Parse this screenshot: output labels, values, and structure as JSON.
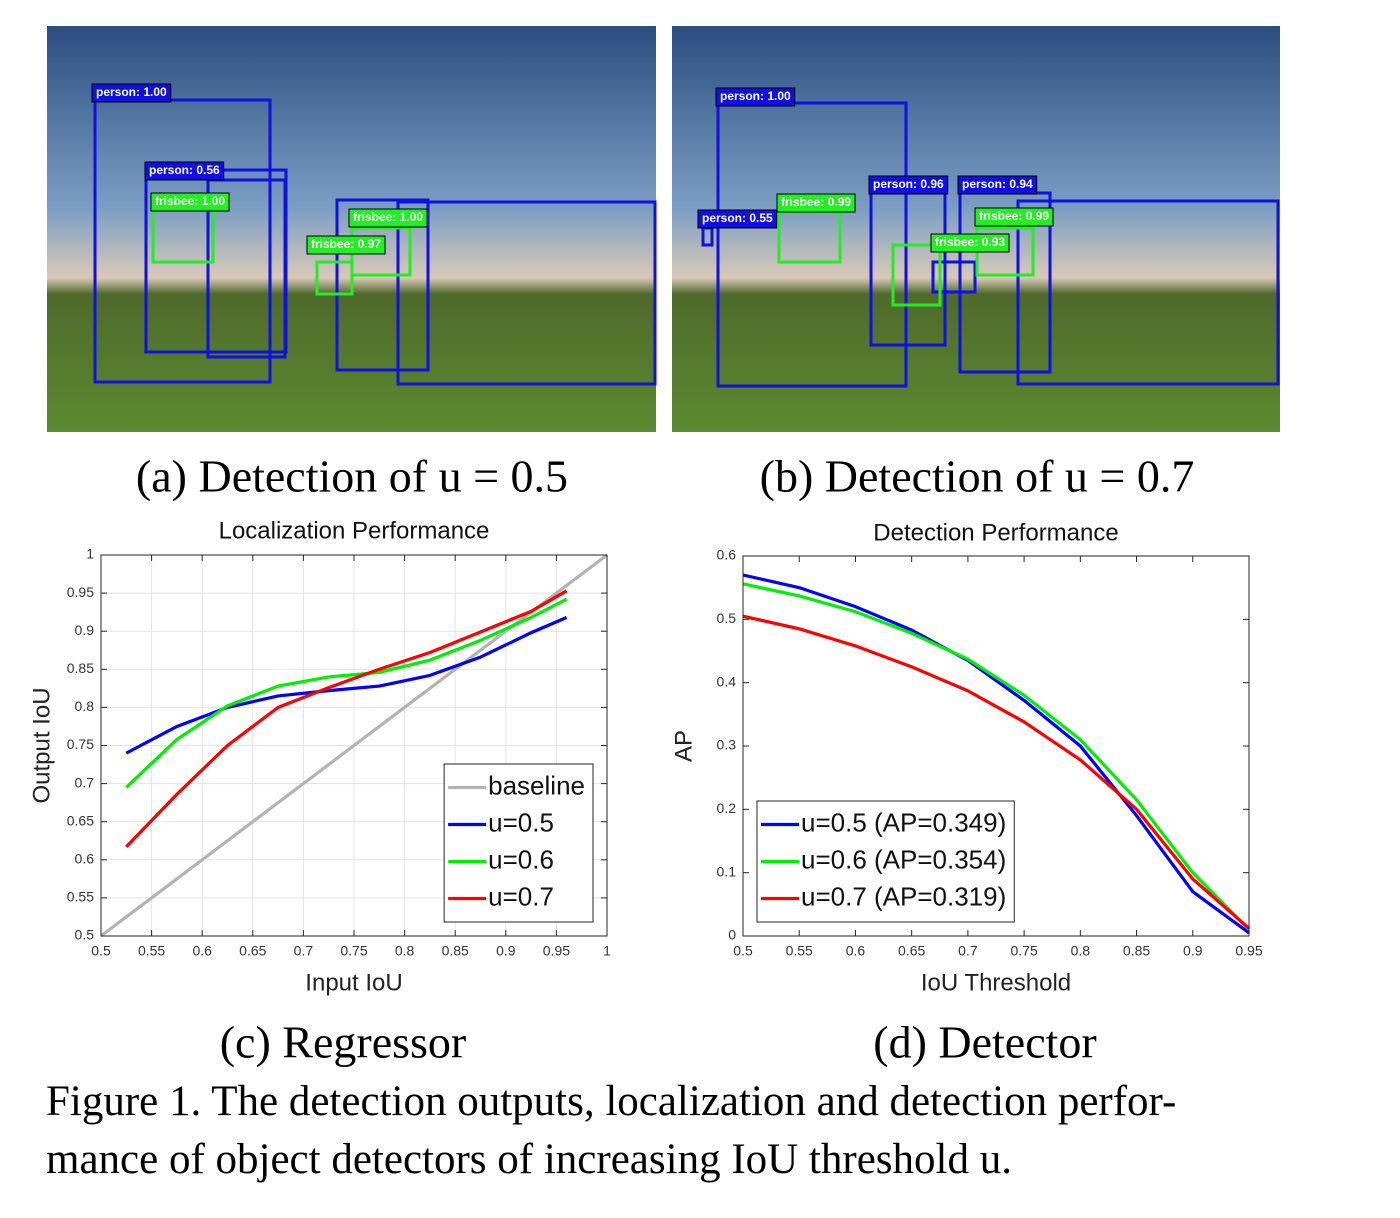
{
  "photos": [
    {
      "caption": "(a) Detection of u = 0.5",
      "detections": [
        "person: 1.00",
        "person: 0.56",
        "frisbee: 1.00",
        "frisbee: 0.97",
        "frisbee: 1.00"
      ]
    },
    {
      "caption": "(b) Detection of u = 0.7",
      "detections": [
        "person: 1.00",
        "person: 0.55",
        "frisbee: 0.99",
        "person: 0.96",
        "person: 0.94",
        "frisbee: 0.99",
        "frisbee: 0.93"
      ]
    }
  ],
  "chart_data": [
    {
      "type": "line",
      "title": "Localization Performance",
      "xlabel": "Input IoU",
      "ylabel": "Output IoU",
      "xlim": [
        0.5,
        1
      ],
      "ylim": [
        0.5,
        1
      ],
      "xticks": [
        0.5,
        0.55,
        0.6,
        0.65,
        0.7,
        0.75,
        0.8,
        0.85,
        0.9,
        0.95,
        1
      ],
      "yticks": [
        0.5,
        0.55,
        0.6,
        0.65,
        0.7,
        0.75,
        0.8,
        0.85,
        0.9,
        0.95,
        1
      ],
      "grid": true,
      "legend": "lower right",
      "series": [
        {
          "name": "baseline",
          "color": "#b3b3b3",
          "x": [
            0.5,
            1
          ],
          "values": [
            0.5,
            1
          ]
        },
        {
          "name": "u=0.5",
          "color": "#0000ff",
          "x": [
            0.525,
            0.575,
            0.625,
            0.675,
            0.725,
            0.775,
            0.825,
            0.875,
            0.925,
            0.96
          ],
          "values": [
            0.74,
            0.775,
            0.8,
            0.815,
            0.822,
            0.828,
            0.842,
            0.866,
            0.898,
            0.918
          ]
        },
        {
          "name": "u=0.6",
          "color": "#00ee00",
          "x": [
            0.525,
            0.575,
            0.625,
            0.675,
            0.725,
            0.775,
            0.825,
            0.875,
            0.925,
            0.96
          ],
          "values": [
            0.695,
            0.758,
            0.802,
            0.828,
            0.84,
            0.846,
            0.862,
            0.888,
            0.918,
            0.942
          ]
        },
        {
          "name": "u=0.7",
          "color": "#ff0000",
          "x": [
            0.525,
            0.575,
            0.625,
            0.675,
            0.725,
            0.775,
            0.825,
            0.875,
            0.925,
            0.96
          ],
          "values": [
            0.617,
            0.686,
            0.75,
            0.8,
            0.826,
            0.85,
            0.872,
            0.899,
            0.926,
            0.953
          ]
        }
      ]
    },
    {
      "type": "line",
      "title": "Detection Performance",
      "xlabel": "IoU Threshold",
      "ylabel": "AP",
      "xlim": [
        0.5,
        0.95
      ],
      "ylim": [
        0,
        0.6
      ],
      "xticks": [
        0.5,
        0.55,
        0.6,
        0.65,
        0.7,
        0.75,
        0.8,
        0.85,
        0.9,
        0.95
      ],
      "yticks": [
        0,
        0.1,
        0.2,
        0.3,
        0.4,
        0.5,
        0.6
      ],
      "grid": false,
      "legend": "lower left",
      "series": [
        {
          "name": "u=0.5 (AP=0.349)",
          "color": "#0000ff",
          "x": [
            0.5,
            0.55,
            0.6,
            0.65,
            0.7,
            0.75,
            0.8,
            0.85,
            0.9,
            0.95
          ],
          "values": [
            0.57,
            0.55,
            0.52,
            0.483,
            0.435,
            0.372,
            0.3,
            0.19,
            0.07,
            0.005
          ]
        },
        {
          "name": "u=0.6 (AP=0.354)",
          "color": "#00ee00",
          "x": [
            0.5,
            0.55,
            0.6,
            0.65,
            0.7,
            0.75,
            0.8,
            0.85,
            0.9,
            0.95
          ],
          "values": [
            0.556,
            0.537,
            0.512,
            0.478,
            0.437,
            0.38,
            0.31,
            0.215,
            0.1,
            0.01
          ]
        },
        {
          "name": "u=0.7 (AP=0.319)",
          "color": "#ff0000",
          "x": [
            0.5,
            0.55,
            0.6,
            0.65,
            0.7,
            0.75,
            0.8,
            0.85,
            0.9,
            0.95
          ],
          "values": [
            0.505,
            0.485,
            0.458,
            0.425,
            0.387,
            0.338,
            0.278,
            0.2,
            0.09,
            0.012
          ]
        }
      ]
    }
  ],
  "subcaptions": [
    "(c) Regressor",
    "(d) Detector"
  ],
  "figure_caption": [
    "Figure 1. The detection outputs, localization and detection perfor-",
    "mance of object detectors of increasing IoU threshold u."
  ]
}
